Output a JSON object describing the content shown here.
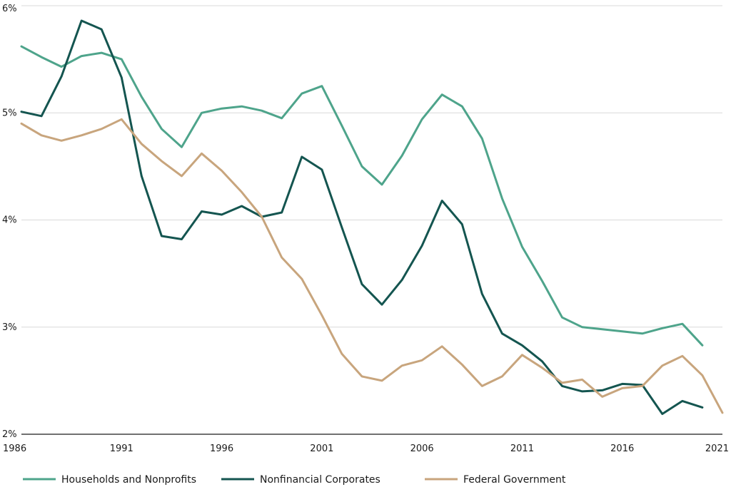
{
  "chart_data": {
    "type": "line",
    "title": "",
    "xlabel": "",
    "ylabel": "",
    "x": [
      1986,
      1987,
      1988,
      1989,
      1990,
      1991,
      1992,
      1993,
      1994,
      1995,
      1996,
      1997,
      1998,
      1999,
      2000,
      2001,
      2002,
      2003,
      2004,
      2005,
      2006,
      2007,
      2008,
      2009,
      2010,
      2011,
      2012,
      2013,
      2014,
      2015,
      2016,
      2017,
      2018,
      2019,
      2020,
      2021
    ],
    "xlim": [
      1986,
      2021
    ],
    "ylim": [
      2,
      6
    ],
    "x_ticks": [
      1986,
      1991,
      1996,
      2001,
      2006,
      2011,
      2016,
      2021
    ],
    "x_tick_labels": [
      "1986",
      "1991",
      "1996",
      "2001",
      "2006",
      "2011",
      "2016",
      "2021"
    ],
    "y_ticks": [
      2,
      3,
      4,
      5,
      6
    ],
    "y_tick_labels": [
      "2%",
      "3%",
      "4%",
      "5%",
      "6%"
    ],
    "grid": "horizontal",
    "legend_position": "bottom",
    "series": [
      {
        "name": "Households and Nonprofits",
        "color": "#4ea48b",
        "values": [
          5.62,
          5.52,
          5.43,
          5.53,
          5.56,
          5.5,
          5.15,
          4.85,
          4.68,
          5.0,
          5.04,
          5.06,
          5.02,
          4.95,
          5.18,
          5.25,
          4.88,
          4.5,
          4.33,
          4.6,
          4.94,
          5.17,
          5.06,
          4.76,
          4.2,
          3.75,
          3.43,
          3.09,
          3.0,
          2.98,
          2.96,
          2.94,
          2.99,
          3.03,
          2.83,
          null
        ]
      },
      {
        "name": "Nonfinancial Corporates",
        "color": "#145550",
        "values": [
          5.01,
          4.97,
          5.34,
          5.86,
          5.78,
          5.33,
          4.41,
          3.85,
          3.82,
          4.08,
          4.05,
          4.13,
          4.03,
          4.07,
          4.59,
          4.47,
          3.93,
          3.4,
          3.21,
          3.44,
          3.76,
          4.18,
          3.96,
          3.31,
          2.94,
          2.83,
          2.68,
          2.45,
          2.4,
          2.41,
          2.47,
          2.46,
          2.19,
          2.31,
          2.25,
          null
        ]
      },
      {
        "name": "Federal Government",
        "color": "#c8a57d",
        "values": [
          4.9,
          4.79,
          4.74,
          4.79,
          4.85,
          4.94,
          4.71,
          4.55,
          4.41,
          4.62,
          4.46,
          4.26,
          4.03,
          3.65,
          3.45,
          3.11,
          2.75,
          2.54,
          2.5,
          2.64,
          2.69,
          2.82,
          2.65,
          2.45,
          2.54,
          2.74,
          2.62,
          2.48,
          2.51,
          2.35,
          2.43,
          2.45,
          2.64,
          2.73,
          2.55,
          2.2
        ]
      }
    ]
  }
}
